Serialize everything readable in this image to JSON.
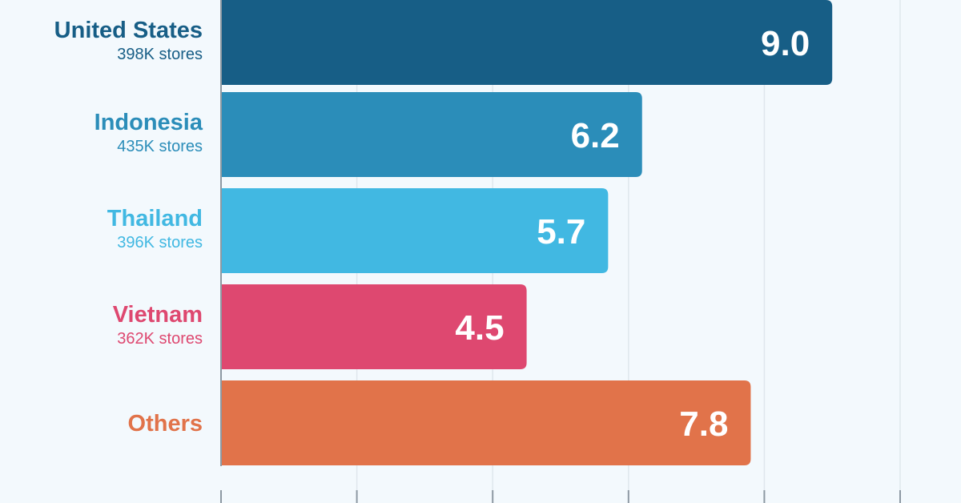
{
  "chart_data": {
    "type": "bar",
    "orientation": "horizontal",
    "categories": [
      "United States",
      "Indonesia",
      "Thailand",
      "Vietnam",
      "Others"
    ],
    "category_subtitles": [
      "398K stores",
      "435K stores",
      "396K stores",
      "362K stores",
      ""
    ],
    "values": [
      9.0,
      6.2,
      5.7,
      4.5,
      7.8
    ],
    "value_labels": [
      "9.0",
      "6.2",
      "5.7",
      "4.5",
      "7.8"
    ],
    "colors": [
      "#175e86",
      "#2b8db9",
      "#41b8e2",
      "#de4870",
      "#e1734a"
    ],
    "xlim": [
      0,
      10
    ],
    "grid": true,
    "legend": "none",
    "title": "",
    "xlabel": "",
    "ylabel": ""
  }
}
